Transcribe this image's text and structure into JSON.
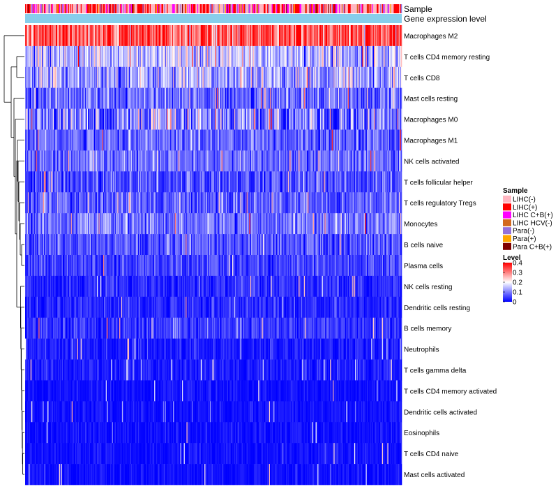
{
  "chart_data": {
    "type": "heatmap",
    "title": "",
    "annotation_rows": [
      {
        "label": "Sample"
      },
      {
        "label": "Gene expression level"
      }
    ],
    "rows": [
      "Macrophages M2",
      "T cells CD4 memory resting",
      "T cells CD8",
      "Mast cells resting",
      "Macrophages M0",
      "Macrophages M1",
      "NK cells activated",
      "T cells follicular helper",
      "T cells regulatory  Tregs",
      "Monocytes",
      "B cells naive",
      "Plasma cells",
      "NK cells resting",
      "Dendritic cells resting",
      "B cells memory",
      "Neutrophils",
      "T cells gamma delta",
      "T cells CD4 memory activated",
      "Dendritic cells activated",
      "Eosinophils",
      "T cells CD4 naive",
      "Mast cells activated"
    ],
    "row_mean_levels": [
      0.33,
      0.15,
      0.13,
      0.08,
      0.09,
      0.08,
      0.08,
      0.06,
      0.07,
      0.09,
      0.06,
      0.05,
      0.03,
      0.03,
      0.04,
      0.02,
      0.02,
      0.01,
      0.01,
      0.01,
      0.01,
      0.01
    ],
    "row_spread": [
      0.07,
      0.06,
      0.06,
      0.05,
      0.08,
      0.04,
      0.04,
      0.04,
      0.04,
      0.04,
      0.04,
      0.03,
      0.025,
      0.025,
      0.03,
      0.02,
      0.02,
      0.015,
      0.015,
      0.015,
      0.015,
      0.015
    ],
    "n_samples": 420,
    "sample_legend": {
      "title": "Sample",
      "entries": [
        {
          "label": "LIHC(-)",
          "color": "#ffb6c1"
        },
        {
          "label": "LIHC(+)",
          "color": "#ff0000"
        },
        {
          "label": "LIHC C+B(+)",
          "color": "#ff00ff"
        },
        {
          "label": "LIHC HCV(-)",
          "color": "#d2691e"
        },
        {
          "label": "Para(-)",
          "color": "#9370db"
        },
        {
          "label": "Para(+)",
          "color": "#ffa500"
        },
        {
          "label": "Para C+B(+)",
          "color": "#800000"
        }
      ]
    },
    "level_legend": {
      "title": "Level",
      "ticks": [
        "0.4",
        "0.3",
        "0.2",
        "0.1",
        "0"
      ],
      "tick_values": [
        0.4,
        0.3,
        0.2,
        0.1,
        0
      ],
      "range": [
        0,
        0.4
      ],
      "colors": {
        "low": "#0000ff",
        "mid": "#ffffff",
        "high": "#ff0000"
      }
    },
    "gene_expression_color": "#87ceeb"
  }
}
